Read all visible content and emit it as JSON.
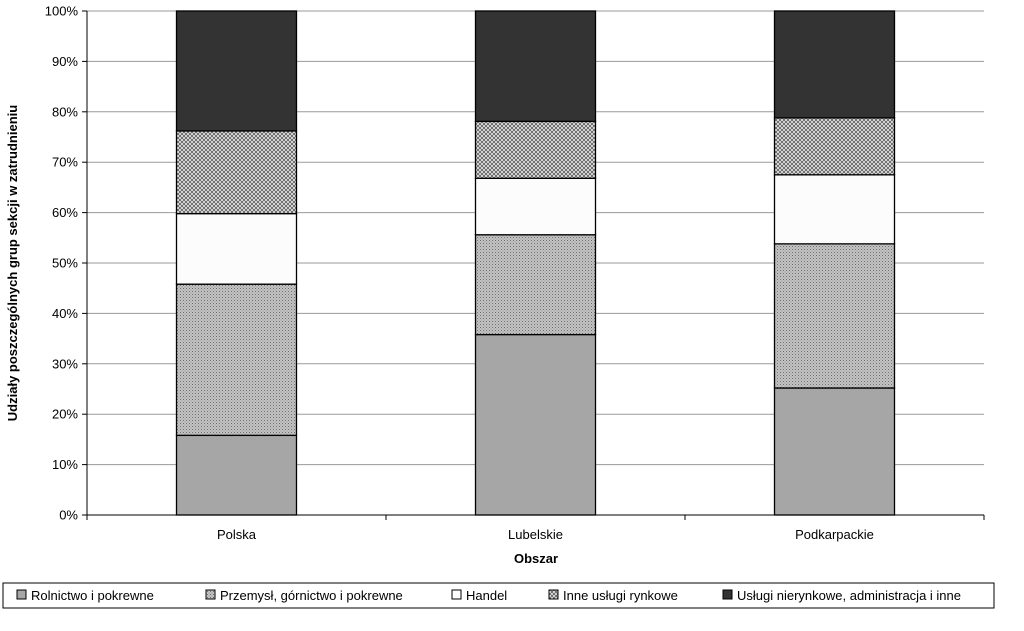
{
  "chart_data": {
    "type": "bar",
    "stacked": true,
    "percent": true,
    "categories": [
      "Polska",
      "Lubelskie",
      "Podkarpackie"
    ],
    "xlabel": "Obszar",
    "ylabel": "Udziały poszczególnych grup sekcji w zatrudnieniu",
    "ylim": [
      0,
      100
    ],
    "yticks": [
      "0%",
      "10%",
      "20%",
      "30%",
      "40%",
      "50%",
      "60%",
      "70%",
      "80%",
      "90%",
      "100%"
    ],
    "grid": true,
    "legend_position": "bottom",
    "series": [
      {
        "name": "Rolnictwo i pokrewne",
        "values": [
          15.8,
          35.8,
          25.2
        ],
        "pattern": "solid-gray",
        "color": "#a6a6a6"
      },
      {
        "name": "Przemysł, górnictwo i pokrewne",
        "values": [
          30.0,
          19.8,
          28.6
        ],
        "pattern": "dots",
        "color": "#b3b3b3"
      },
      {
        "name": "Handel",
        "values": [
          14.0,
          11.2,
          13.7
        ],
        "pattern": "white",
        "color": "#fcfcfc"
      },
      {
        "name": "Inne usługi rynkowe",
        "values": [
          16.4,
          11.3,
          11.3
        ],
        "pattern": "crosshatch",
        "color": "#d9d9d9"
      },
      {
        "name": "Usługi nierynkowe, administracja i inne",
        "values": [
          23.8,
          21.9,
          21.2
        ],
        "pattern": "solid-black",
        "color": "#333333"
      }
    ]
  }
}
